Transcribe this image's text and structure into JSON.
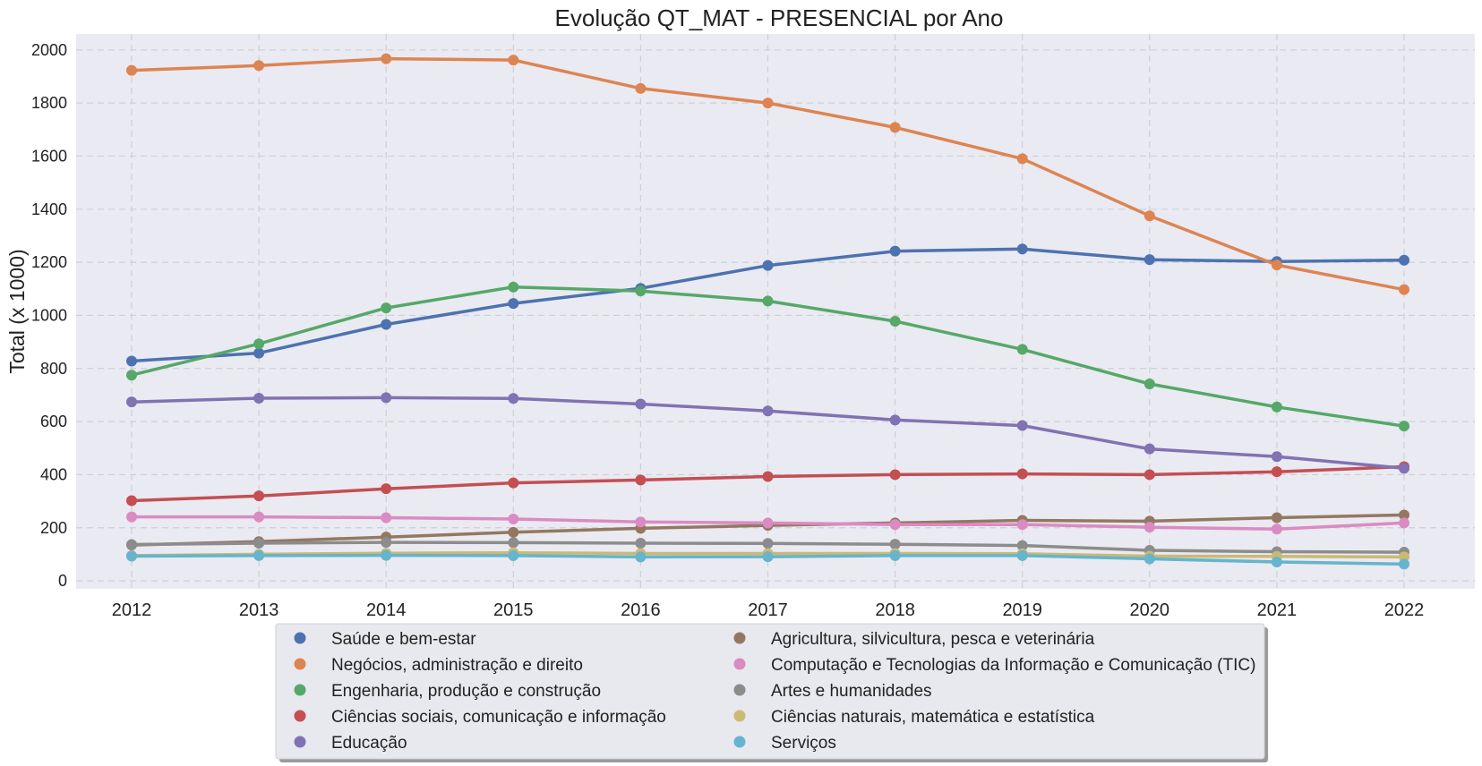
{
  "chart_data": {
    "type": "line",
    "title": "Evolução QT_MAT - PRESENCIAL por Ano",
    "xlabel": "",
    "ylabel": "Total (x 1000)",
    "x": [
      2012,
      2013,
      2014,
      2015,
      2016,
      2017,
      2018,
      2019,
      2020,
      2021,
      2022
    ],
    "ylim": [
      -30,
      2060
    ],
    "yticks": [
      0,
      200,
      400,
      600,
      800,
      1000,
      1200,
      1400,
      1600,
      1800,
      2000
    ],
    "grid": true,
    "legend_position": "bottom-center",
    "series": [
      {
        "name": "Saúde e bem-estar",
        "color": "#4c72b0",
        "values": [
          828,
          858,
          966,
          1045,
          1102,
          1188,
          1242,
          1250,
          1210,
          1203,
          1208
        ]
      },
      {
        "name": "Negócios, administração e direito",
        "color": "#dd8452",
        "values": [
          1923,
          1941,
          1967,
          1962,
          1855,
          1800,
          1708,
          1590,
          1375,
          1190,
          1097
        ]
      },
      {
        "name": "Engenharia, produção e construção",
        "color": "#55a868",
        "values": [
          775,
          893,
          1028,
          1107,
          1092,
          1054,
          978,
          872,
          742,
          655,
          583
        ]
      },
      {
        "name": "Ciências sociais, comunicação e informação",
        "color": "#c44e52",
        "values": [
          302,
          320,
          347,
          369,
          380,
          393,
          400,
          403,
          400,
          411,
          430
        ]
      },
      {
        "name": "Educação",
        "color": "#8172b3",
        "values": [
          674,
          688,
          690,
          687,
          666,
          640,
          606,
          585,
          497,
          468,
          424
        ]
      },
      {
        "name": "Agricultura, silvicultura, pesca e veterinária",
        "color": "#937860",
        "values": [
          135,
          148,
          165,
          183,
          198,
          209,
          218,
          228,
          225,
          238,
          248
        ]
      },
      {
        "name": "Computação e Tecnologias da Informação e Comunicação (TIC)",
        "color": "#da8bc3",
        "values": [
          241,
          241,
          238,
          233,
          222,
          218,
          212,
          212,
          202,
          195,
          218
        ]
      },
      {
        "name": "Artes e humanidades",
        "color": "#8c8c8c",
        "values": [
          137,
          142,
          145,
          144,
          142,
          141,
          138,
          133,
          115,
          110,
          108
        ]
      },
      {
        "name": "Ciências naturais, matemática e estatística",
        "color": "#ccb974",
        "values": [
          95,
          100,
          104,
          106,
          103,
          103,
          103,
          102,
          93,
          92,
          90
        ]
      },
      {
        "name": "Serviços",
        "color": "#64b5cd",
        "values": [
          93,
          95,
          96,
          95,
          90,
          91,
          95,
          95,
          83,
          71,
          63
        ]
      }
    ]
  }
}
